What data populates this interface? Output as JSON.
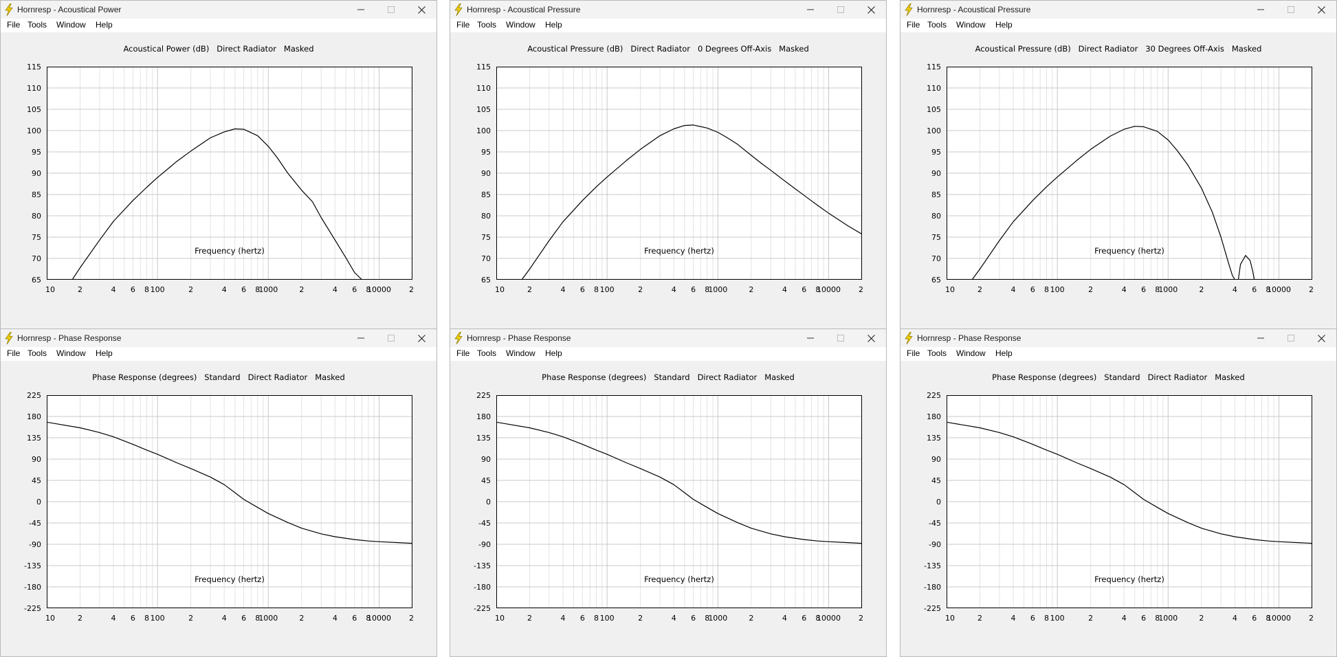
{
  "colors": {
    "window_bg": "#f0f0f0",
    "plot_bg": "#ffffff",
    "grid_major": "#c8c8c8",
    "grid_minor": "#e3e3e3",
    "curve": "#000000",
    "icon_bolt": "#f2d100"
  },
  "icons": {
    "app": "lightning-bolt-icon",
    "minimize": "minimize-icon",
    "maximize": "maximize-icon",
    "close": "close-icon"
  },
  "windows": [
    {
      "title": "Hornresp - Acoustical Power",
      "menu": [
        "File",
        "Tools",
        "Window",
        "Help"
      ],
      "chart_title": "Acoustical Power (dB)   Direct Radiator   Masked",
      "xlabel": "Frequency (hertz)",
      "yticks": [
        "115",
        "110",
        "105",
        "100",
        "95",
        "90",
        "85",
        "80",
        "75",
        "70",
        "65"
      ],
      "xticks": [
        "10",
        "2",
        "4",
        "6",
        "8",
        "100",
        "2",
        "4",
        "6",
        "8",
        "1000",
        "2",
        "4",
        "6",
        "8",
        "10000",
        "2"
      ]
    },
    {
      "title": "Hornresp - Acoustical Pressure",
      "menu": [
        "File",
        "Tools",
        "Window",
        "Help"
      ],
      "chart_title": "Acoustical Pressure (dB)   Direct Radiator   0 Degrees Off-Axis   Masked",
      "xlabel": "Frequency (hertz)",
      "yticks": [
        "115",
        "110",
        "105",
        "100",
        "95",
        "90",
        "85",
        "80",
        "75",
        "70",
        "65"
      ],
      "xticks": [
        "10",
        "2",
        "4",
        "6",
        "8",
        "100",
        "2",
        "4",
        "6",
        "8",
        "1000",
        "2",
        "4",
        "6",
        "8",
        "10000",
        "2"
      ]
    },
    {
      "title": "Hornresp - Acoustical Pressure",
      "menu": [
        "File",
        "Tools",
        "Window",
        "Help"
      ],
      "chart_title": "Acoustical Pressure (dB)   Direct Radiator   30 Degrees Off-Axis   Masked",
      "xlabel": "Frequency (hertz)",
      "yticks": [
        "115",
        "110",
        "105",
        "100",
        "95",
        "90",
        "85",
        "80",
        "75",
        "70",
        "65"
      ],
      "xticks": [
        "10",
        "2",
        "4",
        "6",
        "8",
        "100",
        "2",
        "4",
        "6",
        "8",
        "1000",
        "2",
        "4",
        "6",
        "8",
        "10000",
        "2"
      ]
    },
    {
      "title": "Hornresp - Phase Response",
      "menu": [
        "File",
        "Tools",
        "Window",
        "Help"
      ],
      "chart_title": "Phase Response (degrees)   Standard   Direct Radiator   Masked",
      "xlabel": "Frequency (hertz)",
      "yticks": [
        "225",
        "180",
        "135",
        "90",
        "45",
        "0",
        "-45",
        "-90",
        "-135",
        "-180",
        "-225"
      ],
      "xticks": [
        "10",
        "2",
        "4",
        "6",
        "8",
        "100",
        "2",
        "4",
        "6",
        "8",
        "1000",
        "2",
        "4",
        "6",
        "8",
        "10000",
        "2"
      ]
    },
    {
      "title": "Hornresp - Phase Response",
      "menu": [
        "File",
        "Tools",
        "Window",
        "Help"
      ],
      "chart_title": "Phase Response (degrees)   Standard   Direct Radiator   Masked",
      "xlabel": "Frequency (hertz)",
      "yticks": [
        "225",
        "180",
        "135",
        "90",
        "45",
        "0",
        "-45",
        "-90",
        "-135",
        "-180",
        "-225"
      ],
      "xticks": [
        "10",
        "2",
        "4",
        "6",
        "8",
        "100",
        "2",
        "4",
        "6",
        "8",
        "1000",
        "2",
        "4",
        "6",
        "8",
        "10000",
        "2"
      ]
    },
    {
      "title": "Hornresp - Phase Response",
      "menu": [
        "File",
        "Tools",
        "Window",
        "Help"
      ],
      "chart_title": "Phase Response (degrees)   Standard   Direct Radiator   Masked",
      "xlabel": "Frequency (hertz)",
      "yticks": [
        "225",
        "180",
        "135",
        "90",
        "45",
        "0",
        "-45",
        "-90",
        "-135",
        "-180",
        "-225"
      ],
      "xticks": [
        "10",
        "2",
        "4",
        "6",
        "8",
        "100",
        "2",
        "4",
        "6",
        "8",
        "1000",
        "2",
        "4",
        "6",
        "8",
        "10000",
        "2"
      ]
    }
  ],
  "chart_data": [
    {
      "type": "line",
      "xscale": "log",
      "xlim": [
        10,
        20000
      ],
      "ylim": [
        65,
        115
      ],
      "grid": true,
      "series": [
        {
          "x": [
            17,
            20,
            30,
            40,
            60,
            80,
            100,
            150,
            200,
            300,
            400,
            500,
            600,
            800,
            1000,
            1200,
            1500,
            2000,
            2500,
            3000,
            4000,
            5000,
            6000,
            7000
          ],
          "y": [
            65,
            67.8,
            74.3,
            78.7,
            83.6,
            86.7,
            89,
            92.8,
            95.2,
            98.3,
            99.7,
            100.4,
            100.3,
            98.8,
            96.3,
            93.7,
            90,
            86,
            83.3,
            79.6,
            74.3,
            70.2,
            66.7,
            65
          ]
        }
      ]
    },
    {
      "type": "line",
      "xscale": "log",
      "xlim": [
        10,
        20000
      ],
      "ylim": [
        65,
        115
      ],
      "grid": true,
      "series": [
        {
          "x": [
            17,
            20,
            30,
            40,
            60,
            80,
            100,
            150,
            200,
            300,
            400,
            500,
            600,
            800,
            1000,
            1200,
            1500,
            2000,
            2500,
            3000,
            4000,
            5000,
            6000,
            7000,
            8000,
            10000,
            15000,
            20000
          ],
          "y": [
            65,
            67.5,
            74.2,
            78.6,
            83.6,
            86.8,
            89.1,
            93,
            95.6,
            98.8,
            100.4,
            101.2,
            101.3,
            100.6,
            99.6,
            98.4,
            96.8,
            94.2,
            92.2,
            90.7,
            88.2,
            86.3,
            84.8,
            83.5,
            82.4,
            80.6,
            77.6,
            75.7
          ]
        }
      ]
    },
    {
      "type": "line",
      "xscale": "log",
      "xlim": [
        10,
        20000
      ],
      "ylim": [
        65,
        115
      ],
      "grid": true,
      "series": [
        {
          "x": [
            17,
            20,
            30,
            40,
            60,
            80,
            100,
            150,
            200,
            300,
            400,
            500,
            600,
            800,
            1000,
            1200,
            1500,
            2000,
            2500,
            3000,
            3500,
            3800,
            4000
          ],
          "y": [
            65,
            67.5,
            74.2,
            78.6,
            83.6,
            86.8,
            89.1,
            93,
            95.6,
            98.7,
            100.3,
            101.0,
            100.9,
            99.8,
            97.8,
            95.4,
            92,
            86.5,
            80.9,
            75,
            69,
            66,
            65
          ]
        },
        {
          "x": [
            4300,
            4500,
            5000,
            5500,
            5800,
            6000
          ],
          "y": [
            65,
            68.6,
            70.7,
            69.5,
            67,
            65
          ]
        }
      ]
    },
    {
      "type": "line",
      "xscale": "log",
      "xlim": [
        10,
        20000
      ],
      "ylim": [
        -225,
        225
      ],
      "grid": true,
      "series": [
        {
          "x": [
            10,
            20,
            30,
            40,
            60,
            80,
            100,
            150,
            200,
            300,
            400,
            500,
            600,
            800,
            1000,
            1500,
            2000,
            3000,
            4000,
            6000,
            8000,
            10000,
            15000,
            20000
          ],
          "y": [
            168,
            156,
            146,
            137,
            121,
            109,
            100,
            82,
            70,
            52,
            36,
            19,
            5,
            -12,
            -25,
            -44,
            -56,
            -68,
            -74,
            -80,
            -83,
            -84.5,
            -86.5,
            -88
          ]
        }
      ]
    },
    {
      "type": "line",
      "xscale": "log",
      "xlim": [
        10,
        20000
      ],
      "ylim": [
        -225,
        225
      ],
      "grid": true,
      "series": [
        {
          "x": [
            10,
            20,
            30,
            40,
            60,
            80,
            100,
            150,
            200,
            300,
            400,
            500,
            600,
            800,
            1000,
            1500,
            2000,
            3000,
            4000,
            6000,
            8000,
            10000,
            15000,
            20000
          ],
          "y": [
            168,
            156,
            146,
            137,
            121,
            109,
            100,
            82,
            70,
            52,
            36,
            19,
            5,
            -12,
            -25,
            -44,
            -56,
            -68,
            -74,
            -80,
            -83,
            -84.5,
            -86.5,
            -88
          ]
        }
      ]
    },
    {
      "type": "line",
      "xscale": "log",
      "xlim": [
        10,
        20000
      ],
      "ylim": [
        -225,
        225
      ],
      "grid": true,
      "series": [
        {
          "x": [
            10,
            20,
            30,
            40,
            60,
            80,
            100,
            150,
            200,
            300,
            400,
            500,
            600,
            800,
            1000,
            1500,
            2000,
            3000,
            4000,
            6000,
            8000,
            10000,
            15000,
            20000
          ],
          "y": [
            168,
            156,
            146,
            137,
            121,
            109,
            100,
            82,
            70,
            52,
            36,
            19,
            5,
            -12,
            -25,
            -44,
            -56,
            -68,
            -74,
            -80,
            -83,
            -84.5,
            -86.5,
            -88
          ]
        }
      ]
    }
  ]
}
